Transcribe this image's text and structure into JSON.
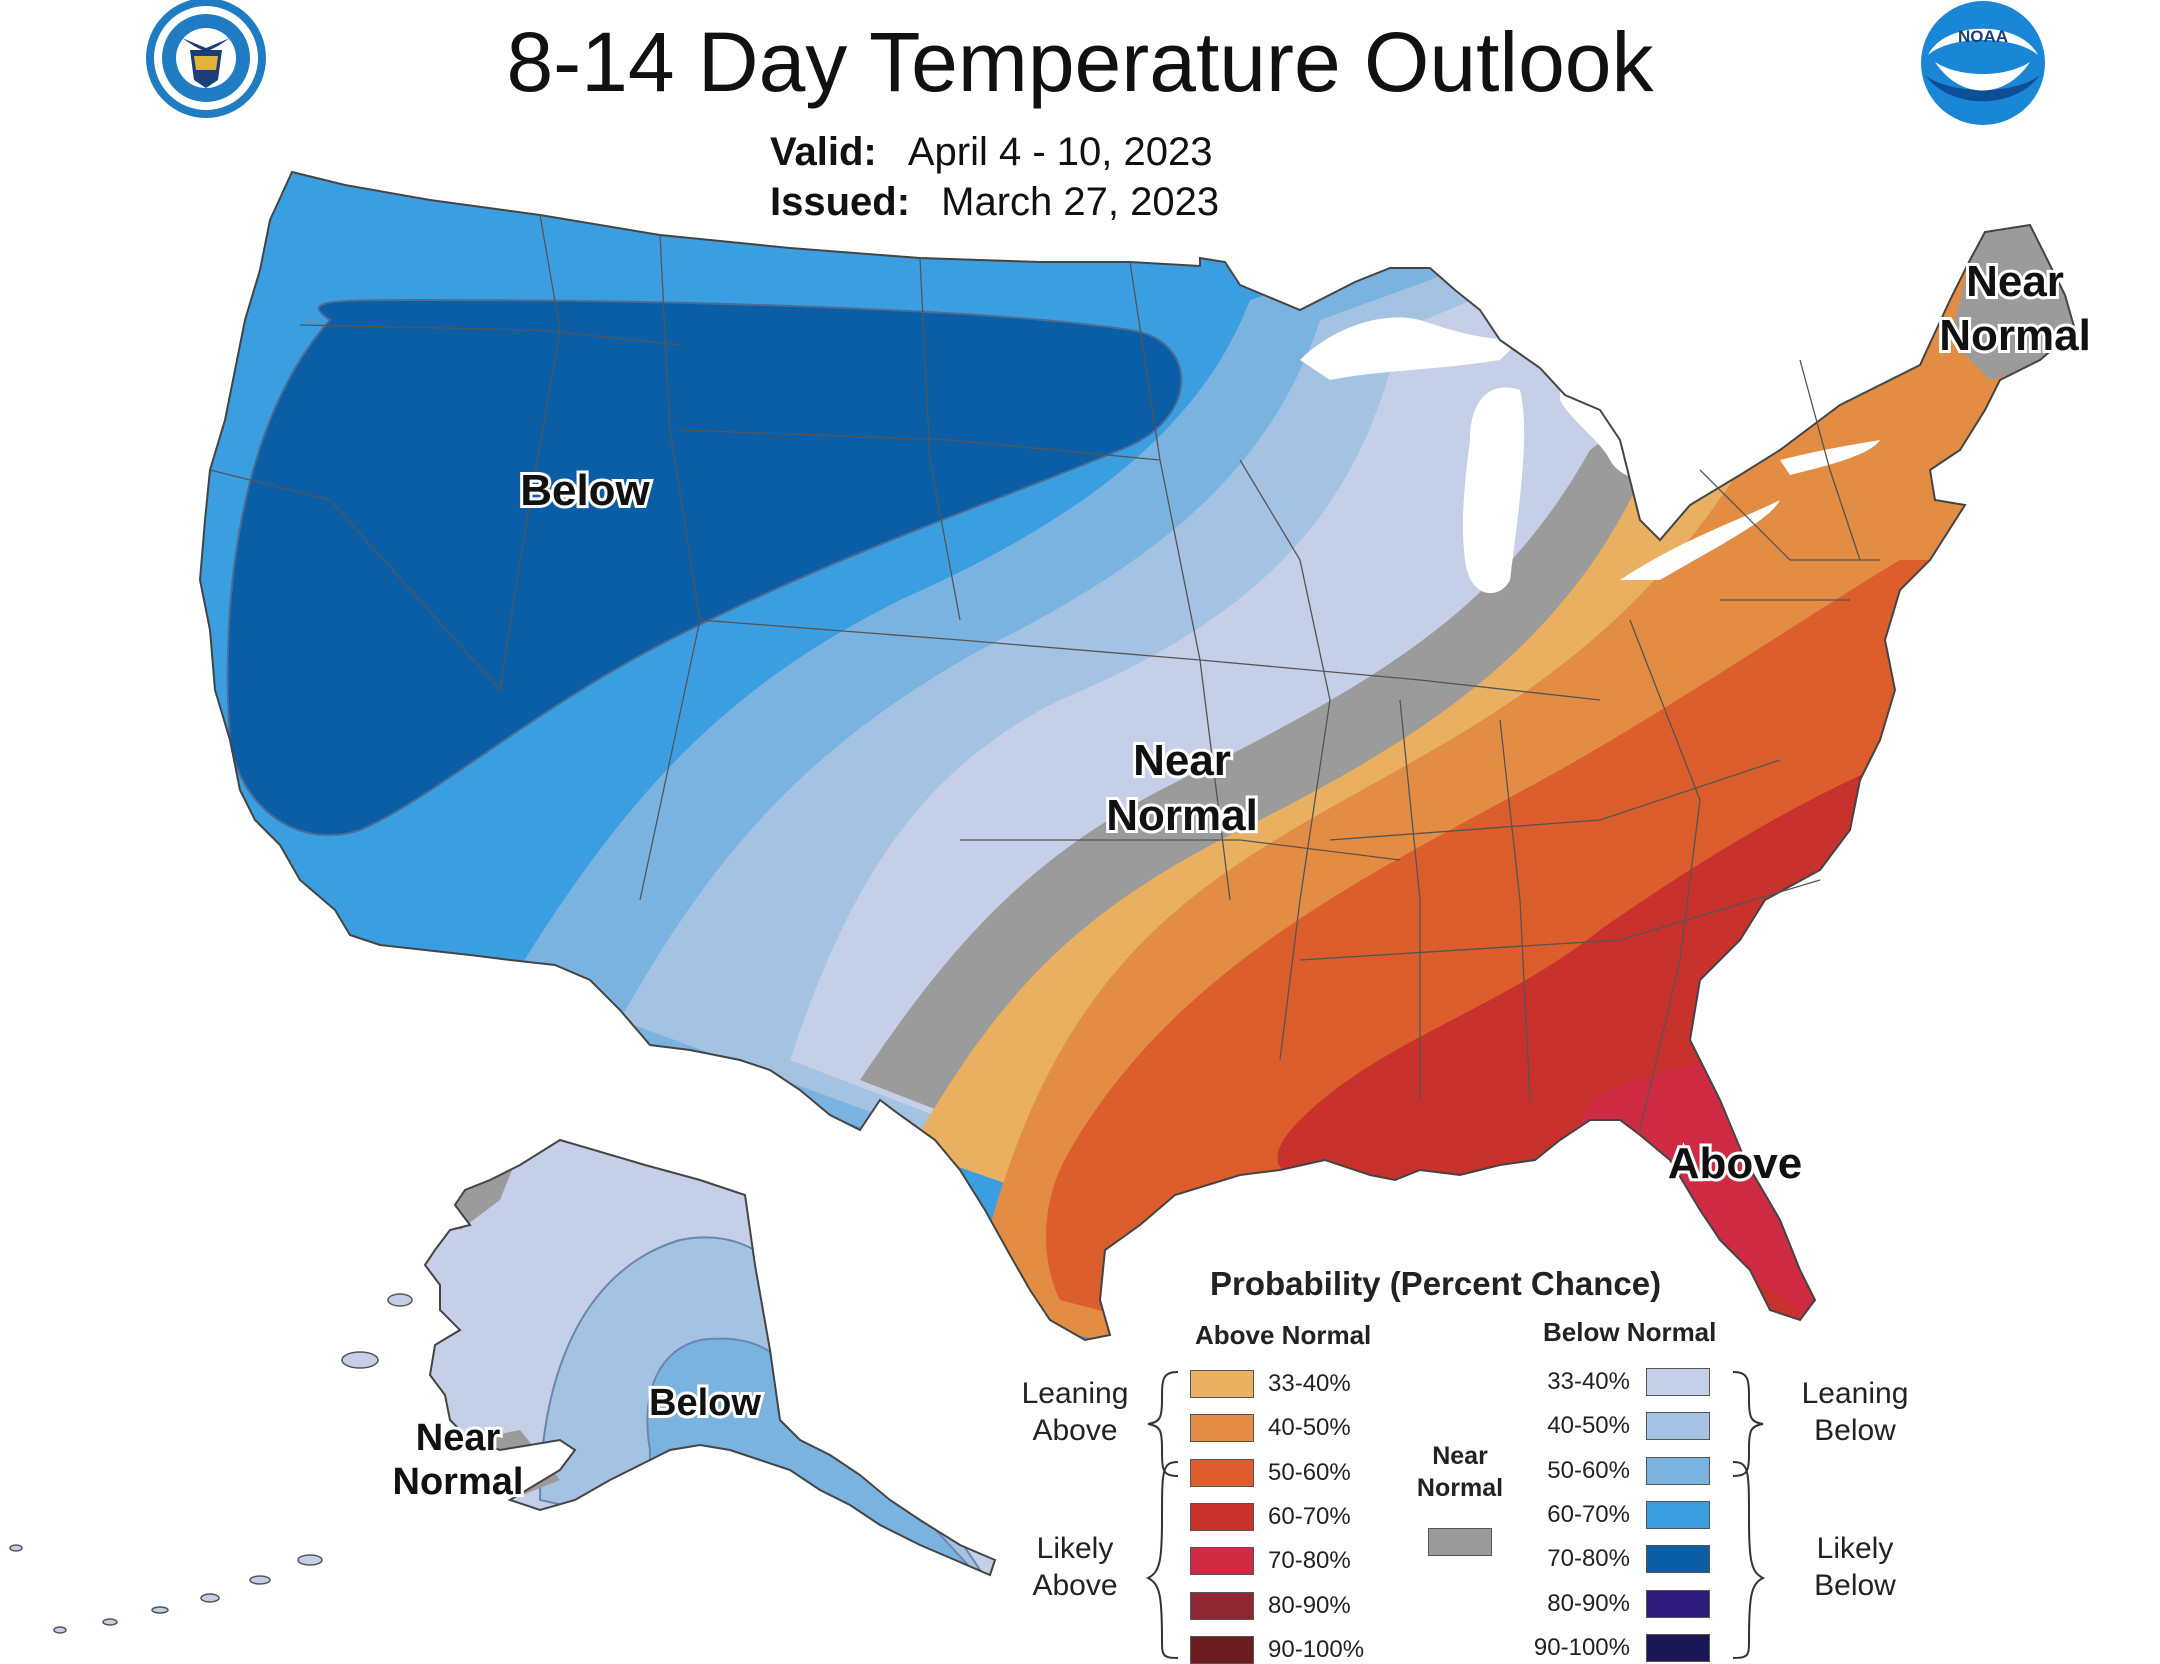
{
  "title": "8-14 Day Temperature Outlook",
  "valid": {
    "label": "Valid:",
    "value": "April 4 - 10, 2023"
  },
  "issued": {
    "label": "Issued:",
    "value": "March 27, 2023"
  },
  "logos": {
    "left": "department-of-commerce-seal",
    "right": "noaa-logo",
    "noaa_text": "NOAA"
  },
  "map_labels": {
    "west_below": "Below",
    "central_near": "Near",
    "central_normal": "Normal",
    "northeast_near": "Near",
    "northeast_normal": "Normal",
    "southeast_above": "Above",
    "alaska_below": "Below",
    "alaska_near": "Near",
    "alaska_normal": "Normal"
  },
  "legend": {
    "title": "Probability (Percent Chance)",
    "above_header": "Above Normal",
    "below_header": "Below Normal",
    "leaning_above": [
      "Leaning",
      "Above"
    ],
    "likely_above": [
      "Likely",
      "Above"
    ],
    "leaning_below": [
      "Leaning",
      "Below"
    ],
    "likely_below": [
      "Likely",
      "Below"
    ],
    "near_normal": [
      "Near",
      "Normal"
    ],
    "near_normal_color": "#9b9b9b",
    "above": [
      {
        "range": "33-40%",
        "color": "#e8b060"
      },
      {
        "range": "40-50%",
        "color": "#e38c44"
      },
      {
        "range": "50-60%",
        "color": "#dc5e2d"
      },
      {
        "range": "60-70%",
        "color": "#c8312c"
      },
      {
        "range": "70-80%",
        "color": "#cf2b44"
      },
      {
        "range": "80-90%",
        "color": "#8e2634"
      },
      {
        "range": "90-100%",
        "color": "#6b1d1f"
      }
    ],
    "below": [
      {
        "range": "33-40%",
        "color": "#c5cfe8"
      },
      {
        "range": "40-50%",
        "color": "#a4c2e2"
      },
      {
        "range": "50-60%",
        "color": "#7bb3e0"
      },
      {
        "range": "60-70%",
        "color": "#3b9ee0"
      },
      {
        "range": "70-80%",
        "color": "#0b5ea6"
      },
      {
        "range": "80-90%",
        "color": "#2c1b7a"
      },
      {
        "range": "90-100%",
        "color": "#1a1755"
      }
    ]
  }
}
